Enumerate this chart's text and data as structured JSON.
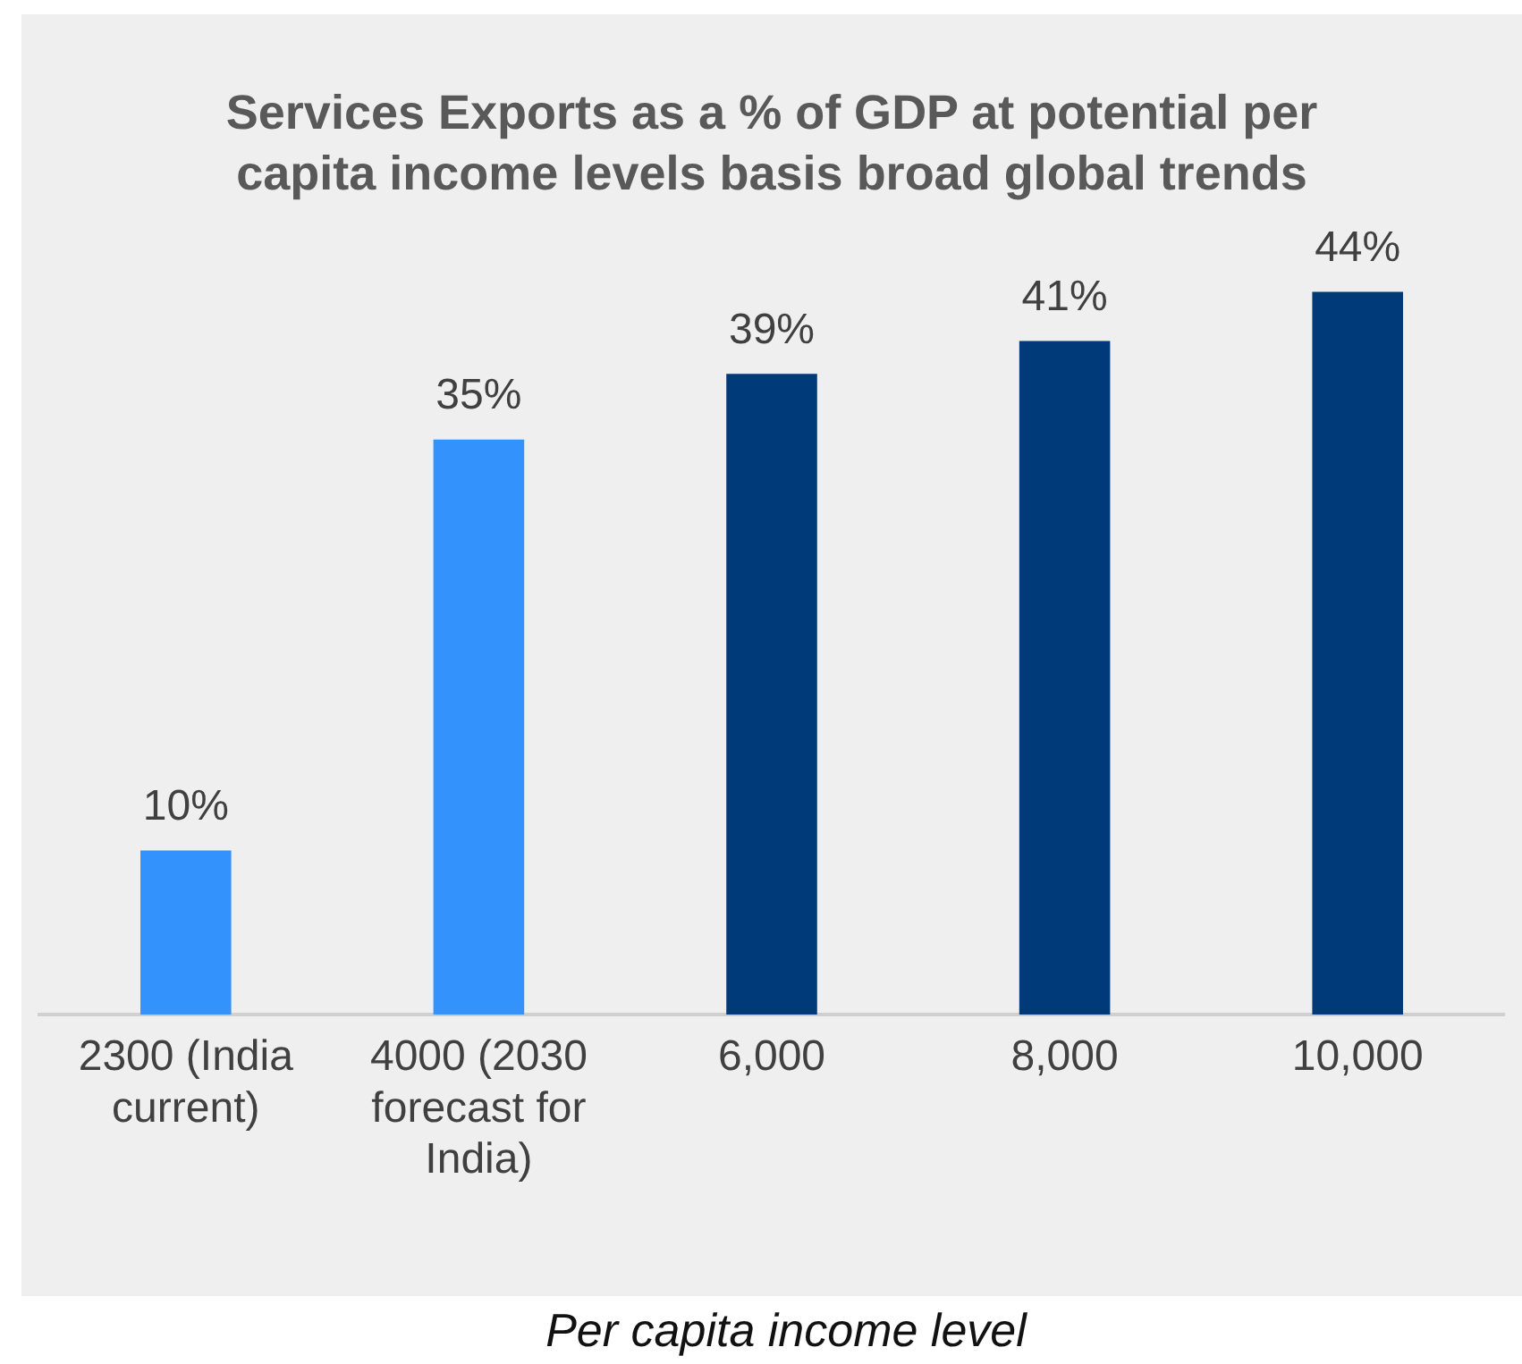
{
  "chart_data": {
    "type": "bar",
    "title": "Services Exports as a % of GDP at potential per capita income levels basis broad global trends",
    "xlabel": "Per capita income level",
    "categories": [
      "2300 (India current)",
      "4000 (2030 forecast for India)",
      "6,000",
      "8,000",
      "10,000"
    ],
    "values": [
      10,
      35,
      39,
      41,
      44
    ],
    "colors": [
      "#3392fb",
      "#3392fb",
      "#003a78",
      "#003a78",
      "#003a78"
    ],
    "value_labels": [
      "10%",
      "35%",
      "39%",
      "41%",
      "44%"
    ],
    "legend": false,
    "grid": false
  }
}
